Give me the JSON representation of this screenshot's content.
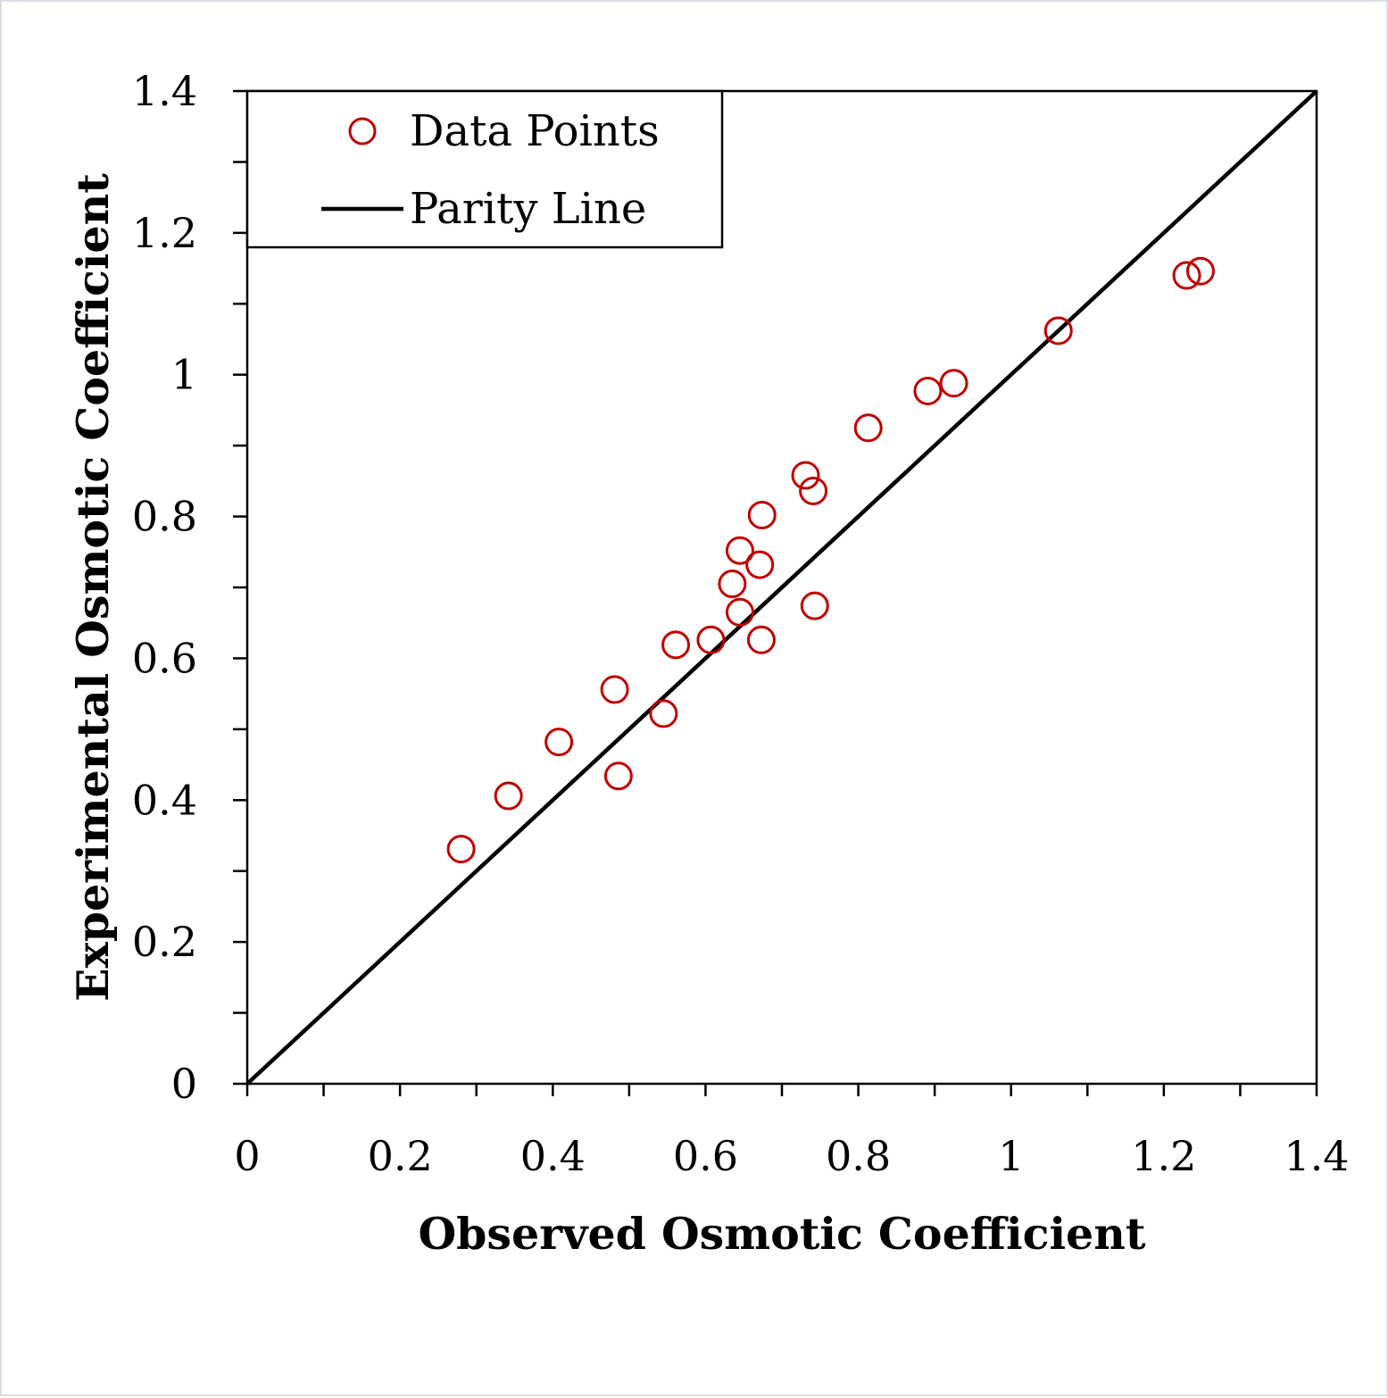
{
  "chart_data": {
    "type": "scatter",
    "xlabel": "Observed Osmotic Coefficient",
    "ylabel": "Experimental Osmotic Coefficient",
    "xlim": [
      0,
      1.4
    ],
    "ylim": [
      0,
      1.4
    ],
    "x_ticks": [
      "0",
      "0.2",
      "0.4",
      "0.6",
      "0.8",
      "1",
      "1.2",
      "1.4"
    ],
    "y_ticks": [
      "0",
      "0.2",
      "0.4",
      "0.6",
      "0.8",
      "1",
      "1.2",
      "1.4"
    ],
    "grid": false,
    "legend": {
      "position": "top-left",
      "entries": [
        "Data Points",
        "Parity Line"
      ]
    },
    "series": [
      {
        "name": "Data Points",
        "kind": "scatter",
        "marker": "open-circle",
        "color": "#c00000",
        "points": [
          {
            "x": 0.28,
            "y": 0.331
          },
          {
            "x": 0.342,
            "y": 0.406
          },
          {
            "x": 0.408,
            "y": 0.482
          },
          {
            "x": 0.481,
            "y": 0.556
          },
          {
            "x": 0.486,
            "y": 0.434
          },
          {
            "x": 0.545,
            "y": 0.522
          },
          {
            "x": 0.561,
            "y": 0.619
          },
          {
            "x": 0.607,
            "y": 0.626
          },
          {
            "x": 0.635,
            "y": 0.705
          },
          {
            "x": 0.645,
            "y": 0.665
          },
          {
            "x": 0.645,
            "y": 0.752
          },
          {
            "x": 0.671,
            "y": 0.732
          },
          {
            "x": 0.673,
            "y": 0.626
          },
          {
            "x": 0.674,
            "y": 0.802
          },
          {
            "x": 0.731,
            "y": 0.858
          },
          {
            "x": 0.741,
            "y": 0.836
          },
          {
            "x": 0.743,
            "y": 0.674
          },
          {
            "x": 0.813,
            "y": 0.925
          },
          {
            "x": 0.891,
            "y": 0.977
          },
          {
            "x": 0.925,
            "y": 0.988
          },
          {
            "x": 1.062,
            "y": 1.062
          },
          {
            "x": 1.23,
            "y": 1.14
          },
          {
            "x": 1.248,
            "y": 1.146
          }
        ]
      },
      {
        "name": "Parity Line",
        "kind": "line",
        "color": "#000000",
        "points": [
          {
            "x": 0,
            "y": 0
          },
          {
            "x": 1.4,
            "y": 1.4
          }
        ]
      }
    ]
  }
}
